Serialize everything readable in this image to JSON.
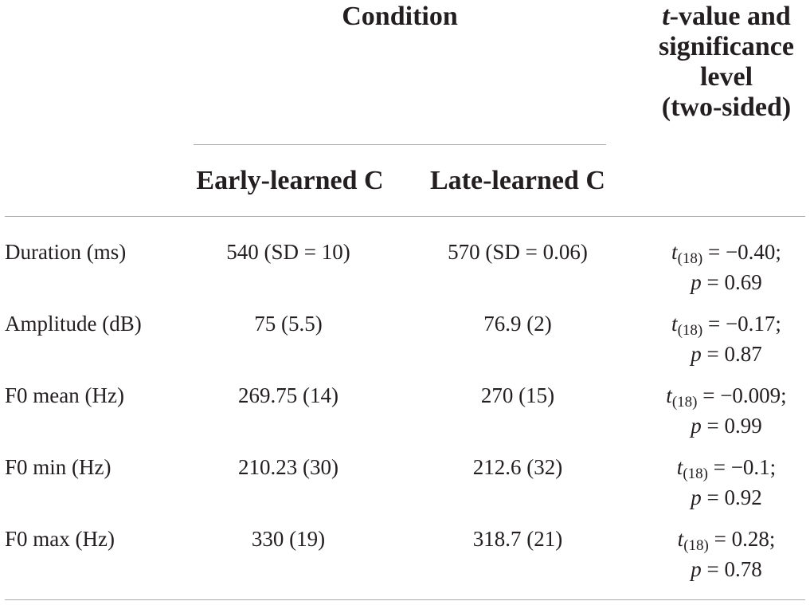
{
  "table": {
    "header": {
      "condition": "Condition",
      "stat_italic": "t",
      "stat_line1_rest": "-value and",
      "stat_line2": "significance",
      "stat_line3": "level",
      "stat_line4": "(two-sided)",
      "col_early": "Early-learned C",
      "col_late": "Late-learned C"
    },
    "rows": [
      {
        "label": "Duration (ms)",
        "early": "540 (SD = 10)",
        "late": "570 (SD = 0.06)",
        "t_sym": "t",
        "t_df": "(18)",
        "t_val": " = −0.40;",
        "p_sym": "p",
        "p_val": " = 0.69"
      },
      {
        "label": "Amplitude (dB)",
        "early": "75 (5.5)",
        "late": "76.9 (2)",
        "t_sym": "t",
        "t_df": "(18)",
        "t_val": " = −0.17;",
        "p_sym": "p",
        "p_val": " = 0.87"
      },
      {
        "label": "F0 mean (Hz)",
        "early": "269.75 (14)",
        "late": "270 (15)",
        "t_sym": "t",
        "t_df": "(18)",
        "t_val": " = −0.009;",
        "p_sym": "p",
        "p_val": " = 0.99"
      },
      {
        "label": "F0 min (Hz)",
        "early": "210.23 (30)",
        "late": "212.6 (32)",
        "t_sym": "t",
        "t_df": "(18)",
        "t_val": " = −0.1;",
        "p_sym": "p",
        "p_val": " = 0.92"
      },
      {
        "label": "F0 max (Hz)",
        "early": "330 (19)",
        "late": "318.7 (21)",
        "t_sym": "t",
        "t_df": "(18)",
        "t_val": " = 0.28;",
        "p_sym": "p",
        "p_val": " = 0.78"
      }
    ]
  }
}
